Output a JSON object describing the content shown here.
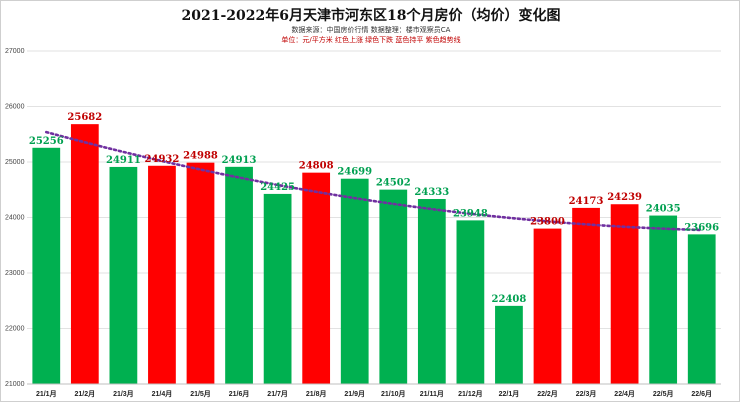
{
  "title": "2021-2022年6月天津市河东区18个月房价（均价）变化图",
  "subtitle": "数据来源：中国房价行情    数据整理：楼市观察员CA",
  "note": "单位：元/平方米    红色上涨    绿色下跌    蓝色持平    紫色趋势线",
  "colors": {
    "up": "#ff0000",
    "down": "#00b050",
    "trend": "#7030a0",
    "grid": "#d9d9d9"
  },
  "chart_data": {
    "type": "bar",
    "categories": [
      "21/1月",
      "21/2月",
      "21/3月",
      "21/4月",
      "21/5月",
      "21/6月",
      "21/7月",
      "21/8月",
      "21/9月",
      "21/10月",
      "21/11月",
      "21/12月",
      "22/1月",
      "22/2月",
      "22/3月",
      "22/4月",
      "22/5月",
      "22/6月"
    ],
    "values": [
      25256,
      25682,
      24911,
      24932,
      24988,
      24913,
      24425,
      24808,
      24699,
      24502,
      24333,
      23948,
      22408,
      23800,
      24173,
      24239,
      24035,
      23696
    ],
    "bar_colors": [
      "down",
      "up",
      "down",
      "up",
      "up",
      "down",
      "down",
      "up",
      "down",
      "down",
      "down",
      "down",
      "down",
      "up",
      "up",
      "up",
      "down",
      "down"
    ],
    "ylim": [
      21000,
      27000
    ],
    "yticks": [
      21000,
      22000,
      23000,
      24000,
      25000,
      26000,
      27000
    ],
    "trendline": {
      "type": "polynomial",
      "color": "purple",
      "style": "dotted"
    },
    "grid": true
  }
}
